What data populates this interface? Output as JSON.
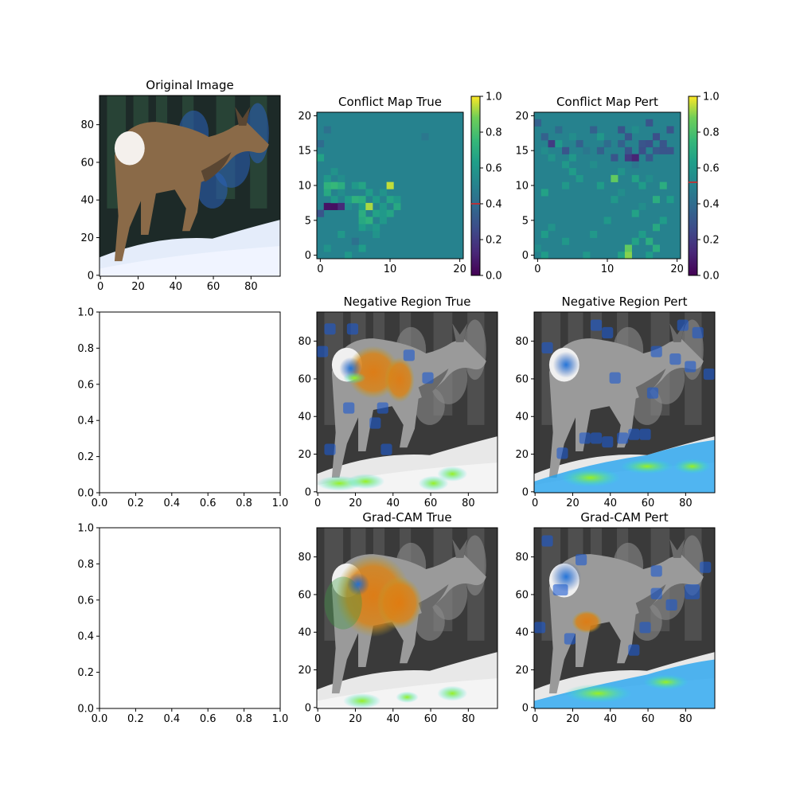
{
  "chart_data": [
    {
      "type": "image",
      "title": "Original Image",
      "xticks": [
        "0",
        "20",
        "40",
        "60",
        "80"
      ],
      "yticks": [
        "0",
        "20",
        "40",
        "60",
        "80"
      ],
      "xlim": [
        -0.5,
        95.5
      ],
      "ylim": [
        95.5,
        -0.5
      ],
      "content": "deer in snowy forest"
    },
    {
      "type": "heatmap",
      "title": "Conflict Map True",
      "xticks": [
        "0",
        "10",
        "20"
      ],
      "yticks": [
        "0",
        "5",
        "10",
        "15",
        "20"
      ],
      "xlim": [
        -0.5,
        20.5
      ],
      "ylim": [
        20.5,
        -0.5
      ],
      "colormap": "viridis",
      "colorbar": {
        "ticks": [
          "0.0",
          "0.2",
          "0.4",
          "0.6",
          "0.8",
          "1.0"
        ],
        "range": [
          0,
          1
        ],
        "marker": 0.4
      },
      "background": 0.5,
      "cells": [
        [
          0,
          3,
          0.62
        ],
        [
          0,
          5,
          0.55
        ],
        [
          1,
          4,
          0.6
        ],
        [
          2,
          1,
          0.58
        ],
        [
          2,
          6,
          0.62
        ],
        [
          3,
          5,
          0.42
        ],
        [
          4,
          3,
          0.6
        ],
        [
          4,
          8,
          0.58
        ],
        [
          5,
          6,
          0.62
        ],
        [
          5,
          7,
          0.55
        ],
        [
          5,
          8,
          0.6
        ],
        [
          6,
          6,
          0.68
        ],
        [
          6,
          7,
          0.72
        ],
        [
          6,
          9,
          0.6
        ],
        [
          7,
          0,
          0.3
        ],
        [
          7,
          6,
          0.7
        ],
        [
          7,
          8,
          0.65
        ],
        [
          7,
          9,
          0.6
        ],
        [
          7,
          10,
          0.66
        ],
        [
          8,
          1,
          0.06
        ],
        [
          8,
          2,
          0.05
        ],
        [
          8,
          3,
          0.14
        ],
        [
          8,
          4,
          0.55
        ],
        [
          8,
          6,
          0.62
        ],
        [
          8,
          7,
          0.93
        ],
        [
          8,
          9,
          0.6
        ],
        [
          8,
          11,
          0.68
        ],
        [
          9,
          2,
          0.6
        ],
        [
          9,
          4,
          0.62
        ],
        [
          9,
          5,
          0.72
        ],
        [
          9,
          6,
          0.7
        ],
        [
          9,
          8,
          0.62
        ],
        [
          9,
          10,
          0.66
        ],
        [
          9,
          11,
          0.6
        ],
        [
          10,
          1,
          0.68
        ],
        [
          10,
          3,
          0.55
        ],
        [
          10,
          7,
          0.62
        ],
        [
          10,
          9,
          0.58
        ],
        [
          11,
          1,
          0.72
        ],
        [
          11,
          2,
          0.75
        ],
        [
          11,
          3,
          0.7
        ],
        [
          11,
          5,
          0.6
        ],
        [
          11,
          6,
          0.66
        ],
        [
          11,
          10,
          0.95
        ],
        [
          12,
          1,
          0.6
        ],
        [
          12,
          3,
          0.55
        ],
        [
          13,
          2,
          0.58
        ],
        [
          15,
          0,
          0.65
        ],
        [
          17,
          0,
          0.4
        ],
        [
          19,
          1,
          0.42
        ],
        [
          18,
          15,
          0.45
        ]
      ]
    },
    {
      "type": "heatmap",
      "title": "Conflict Map Pert",
      "xticks": [
        "0",
        "10",
        "20"
      ],
      "yticks": [
        "0",
        "5",
        "10",
        "15",
        "20"
      ],
      "xlim": [
        -0.5,
        20.5
      ],
      "ylim": [
        20.5,
        -0.5
      ],
      "colormap": "viridis",
      "colorbar": {
        "ticks": [
          "0.0",
          "0.2",
          "0.4",
          "0.6",
          "0.8",
          "1.0"
        ],
        "range": [
          0,
          1
        ],
        "marker": 0.52
      },
      "background": 0.5,
      "cells": [
        [
          0,
          3,
          0.65
        ],
        [
          0,
          6,
          0.92
        ],
        [
          0,
          10,
          0.62
        ],
        [
          0,
          13,
          0.95
        ],
        [
          0,
          15,
          0.6
        ],
        [
          1,
          1,
          0.62
        ],
        [
          1,
          7,
          0.6
        ],
        [
          1,
          12,
          0.65
        ],
        [
          1,
          13,
          0.9
        ],
        [
          1,
          16,
          0.62
        ],
        [
          2,
          0,
          0.55
        ],
        [
          2,
          13,
          0.85
        ],
        [
          2,
          17,
          0.7
        ],
        [
          3,
          4,
          0.6
        ],
        [
          3,
          14,
          0.65
        ],
        [
          3,
          16,
          0.7
        ],
        [
          4,
          1,
          0.62
        ],
        [
          4,
          8,
          0.6
        ],
        [
          4,
          15,
          0.62
        ],
        [
          5,
          2,
          0.58
        ],
        [
          5,
          17,
          0.68
        ],
        [
          6,
          10,
          0.6
        ],
        [
          6,
          18,
          0.62
        ],
        [
          7,
          14,
          0.65
        ],
        [
          8,
          15,
          0.55
        ],
        [
          9,
          11,
          0.6
        ],
        [
          9,
          17,
          0.7
        ],
        [
          9,
          19,
          0.62
        ],
        [
          10,
          1,
          0.65
        ],
        [
          10,
          12,
          0.55
        ],
        [
          10,
          16,
          0.5
        ],
        [
          11,
          4,
          0.6
        ],
        [
          11,
          9,
          0.62
        ],
        [
          11,
          15,
          0.62
        ],
        [
          11,
          18,
          0.7
        ],
        [
          12,
          6,
          0.6
        ],
        [
          12,
          11,
          0.85
        ],
        [
          12,
          14,
          0.65
        ],
        [
          12,
          16,
          0.55
        ],
        [
          13,
          5,
          0.62
        ],
        [
          13,
          12,
          0.58
        ],
        [
          13,
          17,
          0.5
        ],
        [
          14,
          4,
          0.6
        ],
        [
          14,
          8,
          0.55
        ],
        [
          14,
          14,
          0.45
        ],
        [
          15,
          2,
          0.58
        ],
        [
          15,
          5,
          0.6
        ],
        [
          15,
          11,
          0.3
        ],
        [
          15,
          13,
          0.2
        ],
        [
          15,
          14,
          0.12
        ],
        [
          15,
          16,
          0.32
        ],
        [
          16,
          1,
          0.55
        ],
        [
          16,
          4,
          0.3
        ],
        [
          16,
          7,
          0.45
        ],
        [
          16,
          9,
          0.35
        ],
        [
          16,
          13,
          0.3
        ],
        [
          16,
          15,
          0.28
        ],
        [
          16,
          17,
          0.32
        ],
        [
          16,
          18,
          0.3
        ],
        [
          16,
          19,
          0.3
        ],
        [
          17,
          2,
          0.2
        ],
        [
          17,
          3,
          0.6
        ],
        [
          17,
          6,
          0.35
        ],
        [
          17,
          10,
          0.4
        ],
        [
          17,
          12,
          0.35
        ],
        [
          17,
          15,
          0.3
        ],
        [
          17,
          16,
          0.28
        ],
        [
          17,
          18,
          0.3
        ],
        [
          18,
          1,
          0.35
        ],
        [
          18,
          5,
          0.55
        ],
        [
          18,
          9,
          0.6
        ],
        [
          18,
          13,
          0.3
        ],
        [
          18,
          17,
          0.28
        ],
        [
          19,
          3,
          0.4
        ],
        [
          19,
          8,
          0.35
        ],
        [
          19,
          12,
          0.3
        ],
        [
          19,
          14,
          0.55
        ],
        [
          19,
          19,
          0.3
        ],
        [
          20,
          0,
          0.35
        ],
        [
          20,
          6,
          0.5
        ],
        [
          20,
          16,
          0.3
        ]
      ]
    },
    {
      "type": "empty",
      "title": "",
      "xticks": [
        "0.0",
        "0.2",
        "0.4",
        "0.6",
        "0.8",
        "1.0"
      ],
      "yticks": [
        "0.0",
        "0.2",
        "0.4",
        "0.6",
        "0.8",
        "1.0"
      ],
      "xlim": [
        0,
        1
      ],
      "ylim": [
        0,
        1
      ]
    },
    {
      "type": "image",
      "title": "Negative Region True",
      "xticks": [
        "0",
        "20",
        "40",
        "60",
        "80"
      ],
      "yticks": [
        "0",
        "20",
        "40",
        "60",
        "80"
      ],
      "xlim": [
        -0.5,
        95.5
      ],
      "ylim": [
        95.5,
        -0.5
      ],
      "content": "grayscale deer with jet-colormap overlay on body and snow"
    },
    {
      "type": "image",
      "title": "Negative Region Pert",
      "xticks": [
        "0",
        "20",
        "40",
        "60",
        "80"
      ],
      "yticks": [
        "0",
        "20",
        "40",
        "60",
        "80"
      ],
      "xlim": [
        -0.5,
        95.5
      ],
      "ylim": [
        95.5,
        -0.5
      ],
      "content": "grayscale deer with jet-colormap overlay on patches and snow"
    },
    {
      "type": "empty",
      "title": "",
      "xticks": [
        "0.0",
        "0.2",
        "0.4",
        "0.6",
        "0.8",
        "1.0"
      ],
      "yticks": [
        "0.0",
        "0.2",
        "0.4",
        "0.6",
        "0.8",
        "1.0"
      ],
      "xlim": [
        0,
        1
      ],
      "ylim": [
        0,
        1
      ]
    },
    {
      "type": "image",
      "title": "Grad-CAM True",
      "xticks": [
        "0",
        "20",
        "40",
        "60",
        "80"
      ],
      "yticks": [
        "0",
        "20",
        "40",
        "60",
        "80"
      ],
      "xlim": [
        -0.5,
        95.5
      ],
      "ylim": [
        95.5,
        -0.5
      ],
      "content": "grayscale deer with jet-colormap overlay on body"
    },
    {
      "type": "image",
      "title": "Grad-CAM Pert",
      "xticks": [
        "0",
        "20",
        "40",
        "60",
        "80"
      ],
      "yticks": [
        "0",
        "20",
        "40",
        "60",
        "80"
      ],
      "xlim": [
        -0.5,
        95.5
      ],
      "ylim": [
        95.5,
        -0.5
      ],
      "content": "grayscale deer with jet-colormap overlay on snow"
    }
  ]
}
